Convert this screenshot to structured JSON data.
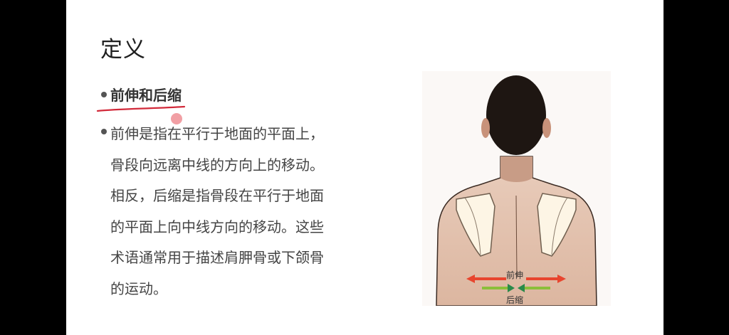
{
  "slide": {
    "title": "定义",
    "bullets": [
      {
        "text": "前伸和后缩",
        "emphasis": "bold, hand-drawn red underline"
      },
      {
        "lines": [
          "前伸是指在平行于地面的平面上，",
          "骨段向远离中线的方向上的移动。",
          "相反，后缩是指骨段在平行于地面",
          "的平面上向中线方向的移动。这些",
          "术语通常用于描述肩胛骨或下颌骨",
          "的运动。"
        ]
      }
    ],
    "figure": {
      "protraction_label": "前伸",
      "retraction_label": "后缩"
    }
  },
  "colors": {
    "underline": "#d22a3a",
    "protraction_arrow": "#e8452e",
    "retraction_arrow": "#2a8a4a"
  }
}
